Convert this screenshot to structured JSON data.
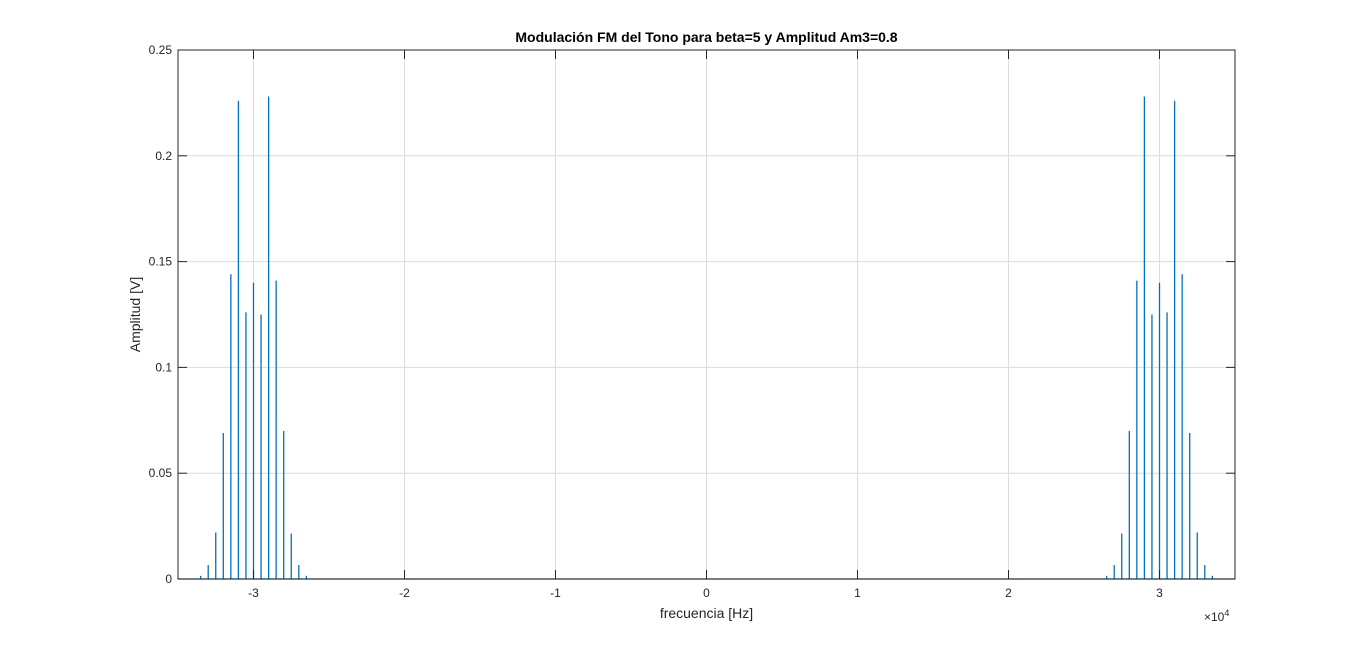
{
  "chart_data": {
    "type": "line",
    "title": "Modulación FM del Tono para beta=5 y Amplitud Am3=0.8",
    "xlabel": "frecuencia [Hz]",
    "ylabel": "Amplitud [V]",
    "x_exponent_label": "×10",
    "x_exponent_power": "4",
    "xlim": [
      -35000,
      35000
    ],
    "ylim": [
      0,
      0.25
    ],
    "grid": true,
    "x_ticks": [
      -30000,
      -20000,
      -10000,
      0,
      10000,
      20000,
      30000
    ],
    "x_tick_labels": [
      "-3",
      "-2",
      "-1",
      "0",
      "1",
      "2",
      "3"
    ],
    "y_ticks": [
      0,
      0.05,
      0.1,
      0.15,
      0.2,
      0.25
    ],
    "y_tick_labels": [
      "0",
      "0.05",
      "0.1",
      "0.15",
      "0.2",
      "0.25"
    ],
    "series_color": "#0072BD",
    "series": [
      {
        "x": [
          -33500,
          -33000,
          -32500,
          -32000,
          -31500,
          -31000,
          -30500,
          -30000,
          -29500,
          -29000,
          -28500,
          -28000,
          -27500,
          -27000,
          -26500,
          26500,
          27000,
          27500,
          28000,
          28500,
          29000,
          29500,
          30000,
          30500,
          31000,
          31500,
          32000,
          32500,
          33000,
          33500
        ],
        "values": [
          0.0015,
          0.0066,
          0.022,
          0.069,
          0.144,
          0.226,
          0.126,
          0.14,
          0.125,
          0.228,
          0.141,
          0.07,
          0.0215,
          0.0066,
          0.0015,
          0.0015,
          0.0066,
          0.0215,
          0.07,
          0.141,
          0.228,
          0.125,
          0.14,
          0.126,
          0.226,
          0.144,
          0.069,
          0.022,
          0.0066,
          0.0015
        ]
      }
    ]
  }
}
